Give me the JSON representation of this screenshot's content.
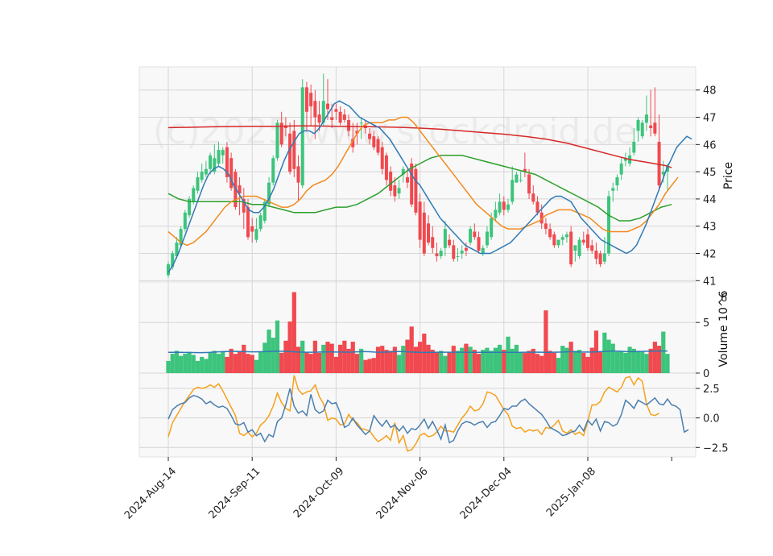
{
  "chart_data": {
    "type": "candlestick",
    "watermark": "(c)2025 www.stockdroid.de",
    "colors": {
      "up": "#3cc47c",
      "down": "#f0494f",
      "sma_fast": "#2f7ab5",
      "sma_mid": "#f28a1e",
      "sma_slow": "#2ca02c",
      "sma_long": "#d62728",
      "osc1": "#4a7fb0",
      "osc2": "#f5a11c",
      "panel_bg": "#f8f8f8",
      "grid": "#d6d6d6"
    },
    "x_ticks": [
      "2024-Aug-14",
      "2024-Sep-11",
      "2024-Oct-09",
      "2024-Nov-06",
      "2024-Dec-04",
      "2025-Jan-08"
    ],
    "x_tick_index": [
      0,
      20,
      40,
      60,
      80,
      100
    ],
    "price": {
      "ylabel": "Price",
      "ylim": [
        40.95,
        48.85
      ],
      "yticks": [
        41,
        42,
        43,
        44,
        45,
        46,
        47,
        48
      ],
      "open": [
        41.2,
        41.5,
        41.9,
        42.3,
        42.9,
        43.4,
        43.9,
        44.3,
        44.7,
        44.9,
        45.1,
        45.0,
        45.3,
        45.6,
        45.9,
        45.5,
        45.0,
        44.5,
        44.0,
        43.7,
        43.0,
        42.5,
        42.9,
        43.2,
        43.8,
        44.6,
        45.5,
        46.8,
        46.7,
        46.4,
        46.5,
        45.2,
        44.5,
        48.1,
        47.9,
        47.6,
        47.1,
        46.8,
        47.5,
        47.0,
        47.3,
        47.2,
        47.1,
        46.9,
        46.2,
        46.5,
        46.8,
        46.7,
        46.4,
        46.3,
        46.2,
        45.9,
        45.6,
        45.0,
        44.5,
        44.2,
        44.9,
        44.8,
        45.3,
        45.1,
        43.9,
        43.5,
        43.1,
        42.6,
        42.0,
        41.9,
        42.2,
        42.5,
        42.3,
        41.9,
        42.0,
        42.2,
        42.4,
        42.8,
        42.6,
        42.0,
        42.3,
        42.6,
        43.3,
        43.5,
        43.9,
        43.6,
        43.9,
        44.6,
        44.7,
        45.1,
        44.9,
        44.2,
        43.9,
        43.5,
        43.1,
        42.9,
        42.7,
        42.3,
        42.5,
        42.6,
        42.8,
        42.1,
        41.9,
        42.5,
        42.7,
        42.3,
        42.1,
        42.0,
        41.7,
        42.0,
        44.3,
        44.5,
        44.9,
        45.4,
        45.3,
        45.7,
        46.5,
        46.3,
        46.8,
        46.7,
        46.8,
        46.1,
        44.9,
        45.0
      ],
      "high": [
        41.7,
        42.1,
        42.6,
        43.0,
        43.6,
        44.1,
        44.5,
        45.0,
        45.3,
        45.4,
        45.7,
        46.0,
        46.1,
        45.9,
        46.1,
        45.7,
        45.1,
        44.8,
        44.4,
        44.0,
        43.3,
        43.3,
        43.5,
        44.0,
        44.8,
        45.6,
        46.9,
        47.2,
        47.0,
        46.8,
        46.9,
        45.6,
        48.4,
        48.3,
        48.2,
        48.0,
        47.6,
        48.6,
        48.4,
        47.5,
        47.5,
        47.4,
        47.3,
        47.1,
        46.8,
        46.8,
        47.0,
        46.9,
        46.6,
        46.5,
        46.3,
        46.1,
        45.7,
        45.2,
        44.8,
        44.7,
        45.2,
        45.1,
        45.5,
        45.3,
        44.2,
        43.9,
        43.4,
        43.0,
        42.4,
        42.2,
        43.2,
        42.7,
        42.5,
        42.2,
        42.3,
        42.4,
        43.0,
        43.1,
        42.8,
        42.3,
        43.0,
        43.5,
        43.9,
        44.2,
        44.1,
        44.0,
        45.2,
        45.0,
        45.0,
        45.7,
        45.1,
        44.5,
        44.1,
        43.8,
        43.3,
        43.1,
        42.8,
        42.5,
        42.7,
        42.8,
        43.0,
        42.3,
        42.6,
        42.8,
        42.9,
        42.5,
        42.4,
        42.1,
        42.6,
        44.3,
        44.6,
        44.9,
        45.5,
        45.7,
        45.9,
        46.6,
        47.0,
        46.9,
        47.8,
        48.0,
        48.1,
        47.1,
        45.4,
        45.3
      ],
      "low": [
        41.1,
        41.4,
        41.8,
        42.2,
        42.8,
        43.3,
        43.8,
        44.2,
        44.6,
        44.8,
        44.9,
        44.9,
        45.2,
        45.3,
        44.6,
        44.3,
        43.6,
        43.4,
        42.9,
        42.5,
        42.4,
        42.4,
        42.8,
        43.1,
        43.7,
        44.5,
        45.4,
        45.9,
        46.3,
        44.9,
        44.8,
        43.9,
        44.4,
        46.5,
        46.7,
        46.2,
        46.5,
        46.7,
        46.9,
        46.6,
        46.9,
        46.7,
        46.8,
        46.3,
        45.7,
        46.0,
        46.2,
        46.4,
        46.0,
        45.8,
        45.6,
        44.9,
        44.5,
        44.1,
        43.9,
        44.0,
        44.6,
        44.4,
        43.7,
        43.4,
        42.2,
        41.9,
        42.3,
        42.0,
        41.7,
        41.8,
        41.9,
        42.2,
        41.7,
        41.7,
        41.8,
        41.9,
        42.3,
        42.5,
        42.0,
        41.9,
        42.2,
        42.5,
        43.2,
        43.4,
        43.4,
        43.5,
        43.8,
        44.6,
        44.6,
        44.8,
        44.0,
        43.8,
        43.4,
        42.9,
        42.7,
        42.5,
        42.2,
        42.2,
        42.3,
        42.4,
        41.5,
        41.7,
        41.8,
        42.3,
        42.1,
        42.0,
        41.6,
        41.5,
        41.6,
        41.9,
        43.9,
        44.3,
        44.7,
        45.2,
        45.2,
        45.6,
        46.1,
        46.2,
        46.5,
        46.3,
        46.3,
        44.3,
        44.6,
        44.3
      ],
      "close": [
        41.6,
        42.0,
        42.4,
        42.9,
        43.5,
        44.0,
        44.4,
        44.8,
        45.0,
        45.1,
        45.6,
        45.5,
        45.8,
        45.8,
        44.8,
        44.4,
        43.7,
        44.2,
        43.5,
        42.6,
        42.8,
        42.9,
        43.4,
        43.9,
        44.6,
        45.5,
        46.8,
        46.0,
        46.6,
        45.0,
        45.1,
        44.6,
        48.1,
        47.2,
        47.4,
        47.0,
        46.8,
        47.6,
        47.3,
        46.9,
        47.2,
        46.8,
        46.9,
        46.5,
        45.9,
        46.4,
        46.8,
        46.6,
        46.2,
        45.9,
        45.7,
        45.1,
        44.7,
        44.3,
        44.1,
        44.4,
        45.1,
        44.6,
        43.8,
        43.5,
        42.5,
        42.0,
        42.4,
        42.2,
        41.9,
        42.1,
        42.9,
        42.3,
        41.8,
        41.9,
        42.1,
        42.1,
        42.9,
        42.6,
        42.1,
        42.2,
        42.8,
        43.3,
        43.6,
        43.9,
        43.6,
        43.8,
        44.7,
        44.9,
        44.7,
        45.0,
        44.2,
        43.9,
        43.5,
        43.1,
        42.9,
        42.6,
        42.3,
        42.5,
        42.6,
        42.7,
        41.6,
        42.3,
        42.5,
        42.4,
        42.2,
        42.1,
        41.8,
        41.6,
        42.0,
        44.1,
        44.4,
        44.8,
        45.3,
        45.5,
        45.6,
        46.1,
        46.9,
        46.8,
        47.1,
        46.6,
        46.4,
        44.5,
        45.0,
        45.2
      ],
      "sma_fast": [
        41.3,
        41.6,
        42.0,
        42.5,
        43.0,
        43.5,
        44.0,
        44.5,
        44.9,
        45.1,
        45.2,
        45.1,
        44.9,
        44.5,
        44.2,
        43.9,
        43.6,
        43.5,
        43.5,
        43.7,
        44.0,
        44.4,
        44.9,
        45.4,
        45.8,
        46.1,
        46.4,
        46.5,
        46.5,
        46.4,
        46.6,
        46.9,
        47.2,
        47.5,
        47.6,
        47.5,
        47.4,
        47.2,
        47.0,
        46.9,
        46.8,
        46.7,
        46.6,
        46.4,
        46.2,
        45.9,
        45.6,
        45.3,
        45.0,
        44.7,
        44.5,
        44.2,
        43.9,
        43.6,
        43.3,
        43.1,
        42.9,
        42.7,
        42.5,
        42.3,
        42.2,
        42.1,
        42.0,
        42.0,
        42.0,
        42.1,
        42.2,
        42.3,
        42.4,
        42.6,
        42.8,
        43.0,
        43.2,
        43.4,
        43.6,
        43.8,
        44.0,
        44.1,
        44.1,
        44.0,
        43.9,
        43.6,
        43.3,
        43.1,
        42.9,
        42.7,
        42.5,
        42.4,
        42.3,
        42.2,
        42.1,
        42.0,
        42.1,
        42.3,
        42.7,
        43.1,
        43.6,
        44.1,
        44.6,
        45.1,
        45.5,
        45.9,
        46.1,
        46.3,
        46.2
      ],
      "sma_mid": [
        42.8,
        42.6,
        42.4,
        42.3,
        42.4,
        42.6,
        42.8,
        43.1,
        43.4,
        43.7,
        43.9,
        44.0,
        44.1,
        44.1,
        44.1,
        44.0,
        43.9,
        43.8,
        43.7,
        43.7,
        43.8,
        44.0,
        44.3,
        44.5,
        44.6,
        44.7,
        44.9,
        45.2,
        45.6,
        46.0,
        46.4,
        46.7,
        46.8,
        46.8,
        46.8,
        46.9,
        46.9,
        47.0,
        47.0,
        46.8,
        46.5,
        46.2,
        45.9,
        45.6,
        45.3,
        45.0,
        44.7,
        44.4,
        44.1,
        43.8,
        43.6,
        43.4,
        43.2,
        43.0,
        42.9,
        42.9,
        42.9,
        43.0,
        43.1,
        43.2,
        43.4,
        43.5,
        43.6,
        43.6,
        43.6,
        43.5,
        43.4,
        43.3,
        43.1,
        42.9,
        42.8,
        42.8,
        42.8,
        42.8,
        42.9,
        43.0,
        43.2,
        43.5,
        43.8,
        44.2,
        44.5,
        44.8
      ],
      "sma_mid_start": 38,
      "sma_slow": [
        44.2,
        44.0,
        43.9,
        43.9,
        43.9,
        43.9,
        43.9,
        43.9,
        43.8,
        43.8,
        43.7,
        43.6,
        43.5,
        43.5,
        43.5,
        43.6,
        43.7,
        43.7,
        43.8,
        44.0,
        44.2,
        44.5,
        44.8,
        45.1,
        45.3,
        45.5,
        45.6,
        45.6,
        45.6,
        45.5,
        45.4,
        45.3,
        45.2,
        45.1,
        45.0,
        44.9,
        44.7,
        44.5,
        44.3,
        44.1,
        43.9,
        43.7,
        43.4,
        43.2,
        43.2,
        43.3,
        43.5,
        43.7,
        43.8
      ],
      "sma_slow_x": [
        0,
        4,
        8,
        12,
        16,
        20,
        24,
        28,
        32,
        36,
        40,
        44,
        48,
        52,
        56,
        60,
        64,
        68,
        72,
        76,
        80,
        84,
        88,
        92,
        96,
        100,
        104,
        108,
        112,
        116,
        120,
        124,
        128,
        132,
        136,
        140,
        144,
        148,
        152,
        156,
        160,
        164,
        168,
        172,
        176,
        180,
        184,
        188,
        192
      ],
      "sma_long": [
        46.62,
        46.63,
        46.65,
        46.66,
        46.67,
        46.67,
        46.68,
        46.68,
        46.67,
        46.66,
        46.65,
        46.63,
        46.6,
        46.56,
        46.5,
        46.44,
        46.38,
        46.3,
        46.2,
        46.05,
        45.85,
        45.65,
        45.45,
        45.32,
        45.22,
        45.15
      ],
      "sma_long_x": [
        0,
        8,
        16,
        24,
        32,
        40,
        48,
        56,
        64,
        72,
        80,
        88,
        96,
        104,
        112,
        120,
        128,
        136,
        144,
        152,
        160,
        168,
        176,
        184,
        190,
        192
      ]
    },
    "volume": {
      "ylabel": "Volume  10^6",
      "ylim": [
        0,
        9
      ],
      "yticks": [
        0,
        5
      ],
      "values": [
        1.2,
        1.9,
        2.2,
        1.7,
        1.9,
        2.1,
        1.8,
        1.2,
        1.6,
        1.4,
        2.0,
        2.2,
        1.9,
        2.1,
        1.6,
        2.4,
        1.9,
        2.2,
        2.8,
        1.9,
        1.8,
        1.3,
        2.1,
        3.0,
        4.3,
        3.5,
        5.2,
        2.0,
        3.2,
        5.1,
        8.0,
        2.6,
        3.2,
        2.1,
        1.9,
        3.2,
        2.0,
        2.8,
        3.1,
        2.9,
        1.6,
        2.8,
        3.2,
        2.4,
        3.1,
        1.9,
        2.4,
        1.3,
        1.4,
        1.5,
        2.6,
        2.7,
        2.3,
        2.2,
        2.6,
        1.8,
        2.7,
        3.3,
        4.6,
        2.6,
        3.1,
        3.9,
        2.8,
        2.3,
        2.1,
        2.2,
        1.7,
        2.1,
        2.7,
        2.2,
        2.5,
        2.9,
        2.6,
        2.3,
        1.9,
        2.3,
        2.5,
        2.2,
        2.5,
        2.8,
        2.3,
        3.6,
        2.4,
        2.8,
        2.1,
        2.0,
        2.2,
        2.4,
        1.9,
        1.7,
        6.2,
        2.2,
        2.0,
        1.5,
        2.7,
        2.5,
        3.1,
        2.2,
        2.3,
        2.0,
        1.6,
        2.5,
        4.2,
        2.1,
        4.0,
        3.3,
        2.9,
        2.1,
        2.2,
        2.0,
        2.6,
        2.4,
        2.2,
        2.1,
        1.9,
        2.4,
        3.1,
        2.7,
        4.1,
        1.9
      ],
      "avg": [
        2.05,
        2.05,
        2.06,
        2.05,
        2.04,
        2.04,
        2.03,
        2.02,
        2.02,
        2.03,
        2.05,
        2.08,
        2.1,
        2.12,
        2.13,
        2.14,
        2.14,
        2.13,
        2.12,
        2.11,
        2.1,
        2.1,
        2.11,
        2.12,
        2.14,
        2.16,
        2.17,
        2.16,
        2.14,
        2.12,
        2.1,
        2.08,
        2.07,
        2.06,
        2.06,
        2.07,
        2.08,
        2.09,
        2.1,
        2.09,
        2.08,
        2.08,
        2.07,
        2.07,
        2.08,
        2.1,
        2.12,
        2.12,
        2.11,
        2.08,
        2.06,
        2.06,
        2.08,
        2.1,
        2.12,
        2.13,
        2.13,
        2.1,
        2.08,
        2.06,
        2.05,
        2.04,
        2.04,
        2.05,
        2.06,
        2.06,
        2.06,
        2.06,
        2.06,
        2.06,
        2.06,
        2.06,
        2.05,
        2.05,
        2.05,
        2.05,
        2.05,
        2.05,
        2.05,
        2.05,
        2.05,
        2.05,
        2.05,
        2.05,
        2.05,
        2.06,
        2.06,
        2.06,
        2.07,
        2.06,
        2.05,
        2.05,
        2.06,
        2.07,
        2.08,
        2.1,
        2.12,
        2.1,
        2.08,
        2.08,
        2.08,
        2.08,
        2.1,
        2.12,
        2.14,
        2.16,
        2.18,
        2.17,
        2.15,
        2.13,
        2.12,
        2.12,
        2.13,
        2.14,
        2.16,
        2.16,
        2.17,
        2.18,
        2.18,
        2.18
      ]
    },
    "oscillator": {
      "ylim": [
        -3.3,
        3.8
      ],
      "yticks": [
        2.5,
        0.0,
        -2.5
      ],
      "ytick_labels": [
        "2.5",
        "0.0",
        "−2.5"
      ],
      "line1": [
        -0.1,
        0.7,
        1.0,
        1.2,
        1.3,
        1.7,
        1.9,
        1.8,
        1.6,
        1.2,
        1.4,
        1.1,
        0.9,
        1.0,
        0.8,
        0.2,
        -0.5,
        -0.6,
        -0.4,
        -1.2,
        -1.0,
        -1.5,
        -1.3,
        -2.0,
        -1.4,
        -1.6,
        -0.3,
        0.0,
        1.1,
        2.5,
        1.0,
        0.4,
        0.6,
        0.2,
        2.0,
        0.7,
        0.4,
        0.6,
        1.5,
        1.2,
        1.3,
        0.4,
        -0.8,
        -0.6,
        0.0,
        -0.6,
        -1.0,
        -1.4,
        -1.1,
        0.2,
        -0.3,
        -0.7,
        -0.2,
        -0.8,
        -0.6,
        -1.1,
        -0.7,
        -1.3,
        -0.9,
        -1.0,
        -0.6,
        -0.1,
        -0.9,
        -0.3,
        -1.0,
        -1.8,
        -0.6,
        -2.1,
        -1.9,
        -1.1,
        -0.5,
        -0.3,
        -0.4,
        -0.6,
        -0.4,
        -0.3,
        -0.8,
        -0.4,
        -0.3,
        0.2,
        0.8,
        0.7,
        1.0,
        1.0,
        1.4,
        1.6,
        1.2,
        0.9,
        0.6,
        0.3,
        -0.2,
        -0.8,
        -1.0,
        -1.2,
        -1.5,
        -1.4,
        -1.2,
        -1.1,
        -0.6,
        -1.1,
        -0.2,
        -0.6,
        -0.1,
        -1.1,
        -0.3,
        -0.4,
        -0.7,
        -0.5,
        0.3,
        1.5,
        1.2,
        0.8,
        1.5,
        1.3,
        1.1,
        1.4,
        1.7,
        1.2,
        1.1,
        1.6,
        1.1,
        1.0,
        0.7,
        -1.2,
        -1.0
      ],
      "line2": [
        -1.6,
        -0.4,
        0.2,
        0.8,
        1.4,
        1.9,
        2.4,
        2.6,
        2.5,
        2.6,
        2.8,
        2.6,
        2.9,
        2.3,
        1.6,
        0.9,
        0.2,
        -1.3,
        -1.5,
        -1.2,
        -1.6,
        -1.3,
        -0.6,
        -0.3,
        0.2,
        1.0,
        2.1,
        1.3,
        0.8,
        0.6,
        3.6,
        2.4,
        2.0,
        2.2,
        2.3,
        2.8,
        1.8,
        1.2,
        -0.2,
        0.0,
        -0.1,
        -0.6,
        -0.5,
        0.3,
        -0.2,
        -0.4,
        -0.9,
        -1.0,
        -1.1,
        -1.6,
        -2.0,
        -1.8,
        -1.5,
        -1.9,
        -0.4,
        -2.1,
        -1.5,
        -2.8,
        -2.7,
        -2.2,
        -1.5,
        -1.3,
        -1.6,
        -1.5,
        -1.2,
        -0.7,
        -1.1,
        -1.1,
        -1.2,
        -0.6,
        0.0,
        0.4,
        1.0,
        0.6,
        0.7,
        1.2,
        2.2,
        2.1,
        1.9,
        1.3,
        0.7,
        0.3,
        -0.7,
        -0.9,
        -0.8,
        -1.2,
        -1.0,
        -1.1,
        -1.0,
        -1.4,
        -0.8,
        -0.9,
        -0.6,
        -0.2,
        -1.1,
        -1.3,
        -1.0,
        -1.4,
        -1.2,
        -1.5,
        -0.3,
        1.1,
        1.1,
        1.4,
        2.2,
        2.6,
        2.4,
        2.2,
        2.6,
        3.4,
        3.5,
        2.8,
        3.4,
        3.1,
        1.2,
        0.3,
        0.2,
        0.4
      ]
    }
  }
}
